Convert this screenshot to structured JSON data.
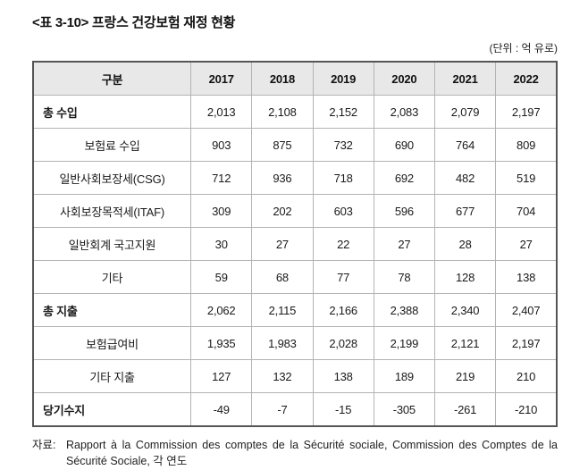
{
  "title": "<표 3-10> 프랑스 건강보험 재정 현황",
  "unit_note": "(단위 : 억 유로)",
  "table": {
    "header": {
      "label": "구분",
      "years": [
        "2017",
        "2018",
        "2019",
        "2020",
        "2021",
        "2022"
      ]
    },
    "rows": [
      {
        "label": "총 수입",
        "type": "category",
        "values": [
          "2,013",
          "2,108",
          "2,152",
          "2,083",
          "2,079",
          "2,197"
        ]
      },
      {
        "label": "보험료 수입",
        "type": "sub",
        "values": [
          "903",
          "875",
          "732",
          "690",
          "764",
          "809"
        ]
      },
      {
        "label": "일반사회보장세(CSG)",
        "type": "sub",
        "values": [
          "712",
          "936",
          "718",
          "692",
          "482",
          "519"
        ]
      },
      {
        "label": "사회보장목적세(ITAF)",
        "type": "sub",
        "values": [
          "309",
          "202",
          "603",
          "596",
          "677",
          "704"
        ]
      },
      {
        "label": "일반회계 국고지원",
        "type": "sub",
        "values": [
          "30",
          "27",
          "22",
          "27",
          "28",
          "27"
        ]
      },
      {
        "label": "기타",
        "type": "sub",
        "values": [
          "59",
          "68",
          "77",
          "78",
          "128",
          "138"
        ]
      },
      {
        "label": "총 지출",
        "type": "category",
        "values": [
          "2,062",
          "2,115",
          "2,166",
          "2,388",
          "2,340",
          "2,407"
        ]
      },
      {
        "label": "보험급여비",
        "type": "sub",
        "values": [
          "1,935",
          "1,983",
          "2,028",
          "2,199",
          "2,121",
          "2,197"
        ]
      },
      {
        "label": "기타 지출",
        "type": "sub",
        "values": [
          "127",
          "132",
          "138",
          "189",
          "219",
          "210"
        ]
      },
      {
        "label": "당기수지",
        "type": "category",
        "values": [
          "-49",
          "-7",
          "-15",
          "-305",
          "-261",
          "-210"
        ]
      }
    ]
  },
  "source": {
    "prefix": "자료:",
    "text": "Rapport à la Commission des comptes de la Sécurité sociale, Commission des Comptes de la Sécurité Sociale, 각 연도"
  }
}
